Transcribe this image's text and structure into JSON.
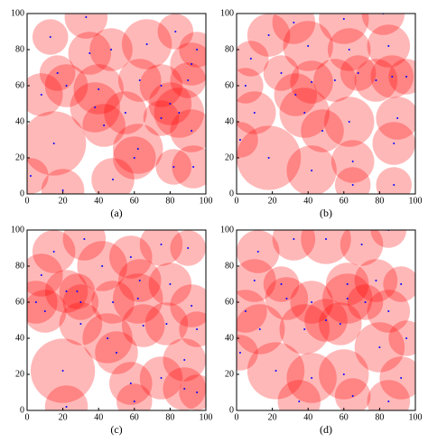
{
  "chart_data": [
    {
      "type": "scatter",
      "label": "(a)",
      "fill_color": "#ff0000",
      "point_color": "#0000ff",
      "xlim": [
        0,
        100
      ],
      "ylim": [
        0,
        100
      ],
      "xticks": [
        0,
        20,
        40,
        60,
        80,
        100
      ],
      "yticks": [
        0,
        20,
        40,
        60,
        80,
        100
      ],
      "x": [
        33,
        13,
        47,
        67,
        83,
        95,
        92,
        17,
        22,
        40,
        8,
        63,
        80,
        85,
        55,
        75,
        38,
        43,
        92,
        15,
        62,
        60,
        82,
        93,
        48,
        20,
        2,
        35,
        75,
        90
      ],
      "y": [
        98,
        87,
        80,
        83,
        90,
        80,
        72,
        67,
        60,
        58,
        55,
        63,
        50,
        45,
        45,
        42,
        48,
        38,
        35,
        28,
        25,
        20,
        15,
        15,
        8,
        2,
        10,
        78,
        60,
        63
      ],
      "r": [
        12,
        10,
        12,
        14,
        10,
        10,
        12,
        10,
        12,
        14,
        12,
        12,
        12,
        14,
        12,
        10,
        14,
        12,
        12,
        18,
        14,
        12,
        10,
        12,
        12,
        12,
        10,
        12,
        12,
        10
      ]
    },
    {
      "type": "scatter",
      "label": "(b)",
      "fill_color": "#ff0000",
      "point_color": "#0000ff",
      "xlim": [
        0,
        100
      ],
      "ylim": [
        0,
        100
      ],
      "xticks": [
        0,
        20,
        40,
        60,
        80,
        100
      ],
      "yticks": [
        0,
        20,
        40,
        60,
        80,
        100
      ],
      "x": [
        32,
        60,
        82,
        18,
        40,
        63,
        85,
        8,
        25,
        5,
        42,
        55,
        78,
        87,
        95,
        68,
        33,
        10,
        38,
        48,
        63,
        90,
        18,
        42,
        65,
        65,
        88,
        88,
        2
      ],
      "y": [
        95,
        97,
        100,
        88,
        82,
        80,
        82,
        75,
        67,
        60,
        62,
        63,
        63,
        65,
        65,
        67,
        55,
        45,
        45,
        35,
        40,
        42,
        20,
        13,
        18,
        5,
        28,
        5,
        30
      ],
      "r": [
        12,
        14,
        12,
        12,
        14,
        12,
        12,
        10,
        10,
        10,
        12,
        12,
        12,
        12,
        10,
        10,
        12,
        12,
        14,
        12,
        14,
        12,
        18,
        14,
        12,
        10,
        12,
        10,
        10
      ]
    },
    {
      "type": "scatter",
      "label": "(c)",
      "fill_color": "#ff0000",
      "point_color": "#0000ff",
      "xlim": [
        0,
        100
      ],
      "ylim": [
        0,
        100
      ],
      "xticks": [
        0,
        20,
        40,
        60,
        80,
        100
      ],
      "yticks": [
        0,
        20,
        40,
        60,
        80,
        100
      ],
      "x": [
        15,
        32,
        42,
        58,
        75,
        90,
        8,
        22,
        28,
        5,
        30,
        10,
        48,
        63,
        62,
        80,
        92,
        30,
        45,
        65,
        78,
        95,
        20,
        50,
        58,
        88,
        88,
        60,
        22,
        75,
        95
      ],
      "y": [
        88,
        95,
        80,
        85,
        92,
        90,
        75,
        66,
        66,
        60,
        60,
        55,
        60,
        72,
        62,
        70,
        58,
        48,
        40,
        47,
        48,
        45,
        22,
        32,
        15,
        28,
        12,
        5,
        2,
        18,
        10
      ],
      "r": [
        12,
        12,
        14,
        12,
        12,
        10,
        12,
        12,
        10,
        12,
        10,
        12,
        12,
        12,
        14,
        12,
        12,
        12,
        14,
        12,
        12,
        10,
        18,
        12,
        12,
        12,
        12,
        10,
        12,
        12,
        10
      ]
    },
    {
      "type": "scatter",
      "label": "(d)",
      "fill_color": "#ff0000",
      "point_color": "#0000ff",
      "xlim": [
        0,
        100
      ],
      "ylim": [
        0,
        100
      ],
      "xticks": [
        0,
        20,
        40,
        60,
        80,
        100
      ],
      "yticks": [
        0,
        20,
        40,
        60,
        80,
        100
      ],
      "x": [
        12,
        32,
        50,
        70,
        85,
        10,
        25,
        5,
        28,
        42,
        62,
        62,
        72,
        78,
        92,
        50,
        58,
        85,
        13,
        38,
        80,
        95,
        22,
        42,
        60,
        92,
        85,
        65,
        35,
        2
      ],
      "y": [
        88,
        95,
        95,
        92,
        100,
        72,
        70,
        55,
        62,
        60,
        70,
        62,
        60,
        72,
        70,
        50,
        48,
        55,
        45,
        45,
        35,
        40,
        22,
        18,
        20,
        18,
        5,
        8,
        5,
        32
      ],
      "r": [
        12,
        12,
        14,
        12,
        10,
        12,
        10,
        12,
        12,
        12,
        12,
        14,
        10,
        12,
        10,
        12,
        12,
        12,
        14,
        14,
        14,
        10,
        16,
        14,
        14,
        12,
        12,
        10,
        12,
        10
      ]
    }
  ]
}
